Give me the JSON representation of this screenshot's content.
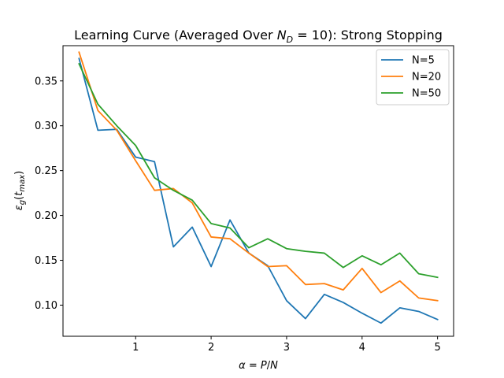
{
  "chart_data": {
    "type": "line",
    "title": "Learning Curve (Averaged Over N_D = 10): Strong Stopping",
    "title_parts": {
      "prefix": "Learning Curve (Averaged Over ",
      "var": "N",
      "sub": "D",
      "mid": " = 10): Strong Stopping"
    },
    "xlabel": "α = P/N",
    "xlabel_parts": {
      "alpha": "α",
      "eq": " = ",
      "P": "P",
      "slash": "/",
      "N": "N"
    },
    "ylabel": "ε_g(t_max)",
    "ylabel_parts": {
      "eps": "ε",
      "g": "g",
      "open": "(",
      "t": "t",
      "max": "max",
      "close": ")"
    },
    "xlim": [
      0.0375,
      5.2125
    ],
    "ylim": [
      0.0653,
      0.3893
    ],
    "x_ticks": [
      1,
      2,
      3,
      4,
      5
    ],
    "x_tick_labels": [
      "1",
      "2",
      "3",
      "4",
      "5"
    ],
    "y_ticks": [
      0.1,
      0.15,
      0.2,
      0.25,
      0.3,
      0.35
    ],
    "y_tick_labels": [
      "0.10",
      "0.15",
      "0.20",
      "0.25",
      "0.30",
      "0.35"
    ],
    "grid": false,
    "legend_position": "top-right",
    "x": [
      0.25,
      0.5,
      0.75,
      1.0,
      1.25,
      1.5,
      1.75,
      2.0,
      2.25,
      2.5,
      2.75,
      3.0,
      3.25,
      3.5,
      3.75,
      4.0,
      4.25,
      4.5,
      4.75,
      5.0
    ],
    "series": [
      {
        "name": "N=5",
        "color": "#1f77b4",
        "values": [
          0.375,
          0.295,
          0.296,
          0.265,
          0.26,
          0.165,
          0.187,
          0.143,
          0.195,
          0.158,
          0.144,
          0.105,
          0.085,
          0.112,
          0.103,
          0.091,
          0.08,
          0.097,
          0.093,
          0.084
        ]
      },
      {
        "name": "N=20",
        "color": "#ff7f0e",
        "values": [
          0.382,
          0.317,
          0.295,
          0.261,
          0.228,
          0.23,
          0.214,
          0.176,
          0.174,
          0.158,
          0.143,
          0.144,
          0.123,
          0.124,
          0.117,
          0.141,
          0.114,
          0.127,
          0.108,
          0.105
        ]
      },
      {
        "name": "N=50",
        "color": "#2ca02c",
        "values": [
          0.369,
          0.324,
          0.3,
          0.278,
          0.242,
          0.228,
          0.217,
          0.191,
          0.186,
          0.164,
          0.174,
          0.163,
          0.16,
          0.158,
          0.142,
          0.155,
          0.145,
          0.158,
          0.135,
          0.131
        ]
      }
    ]
  }
}
